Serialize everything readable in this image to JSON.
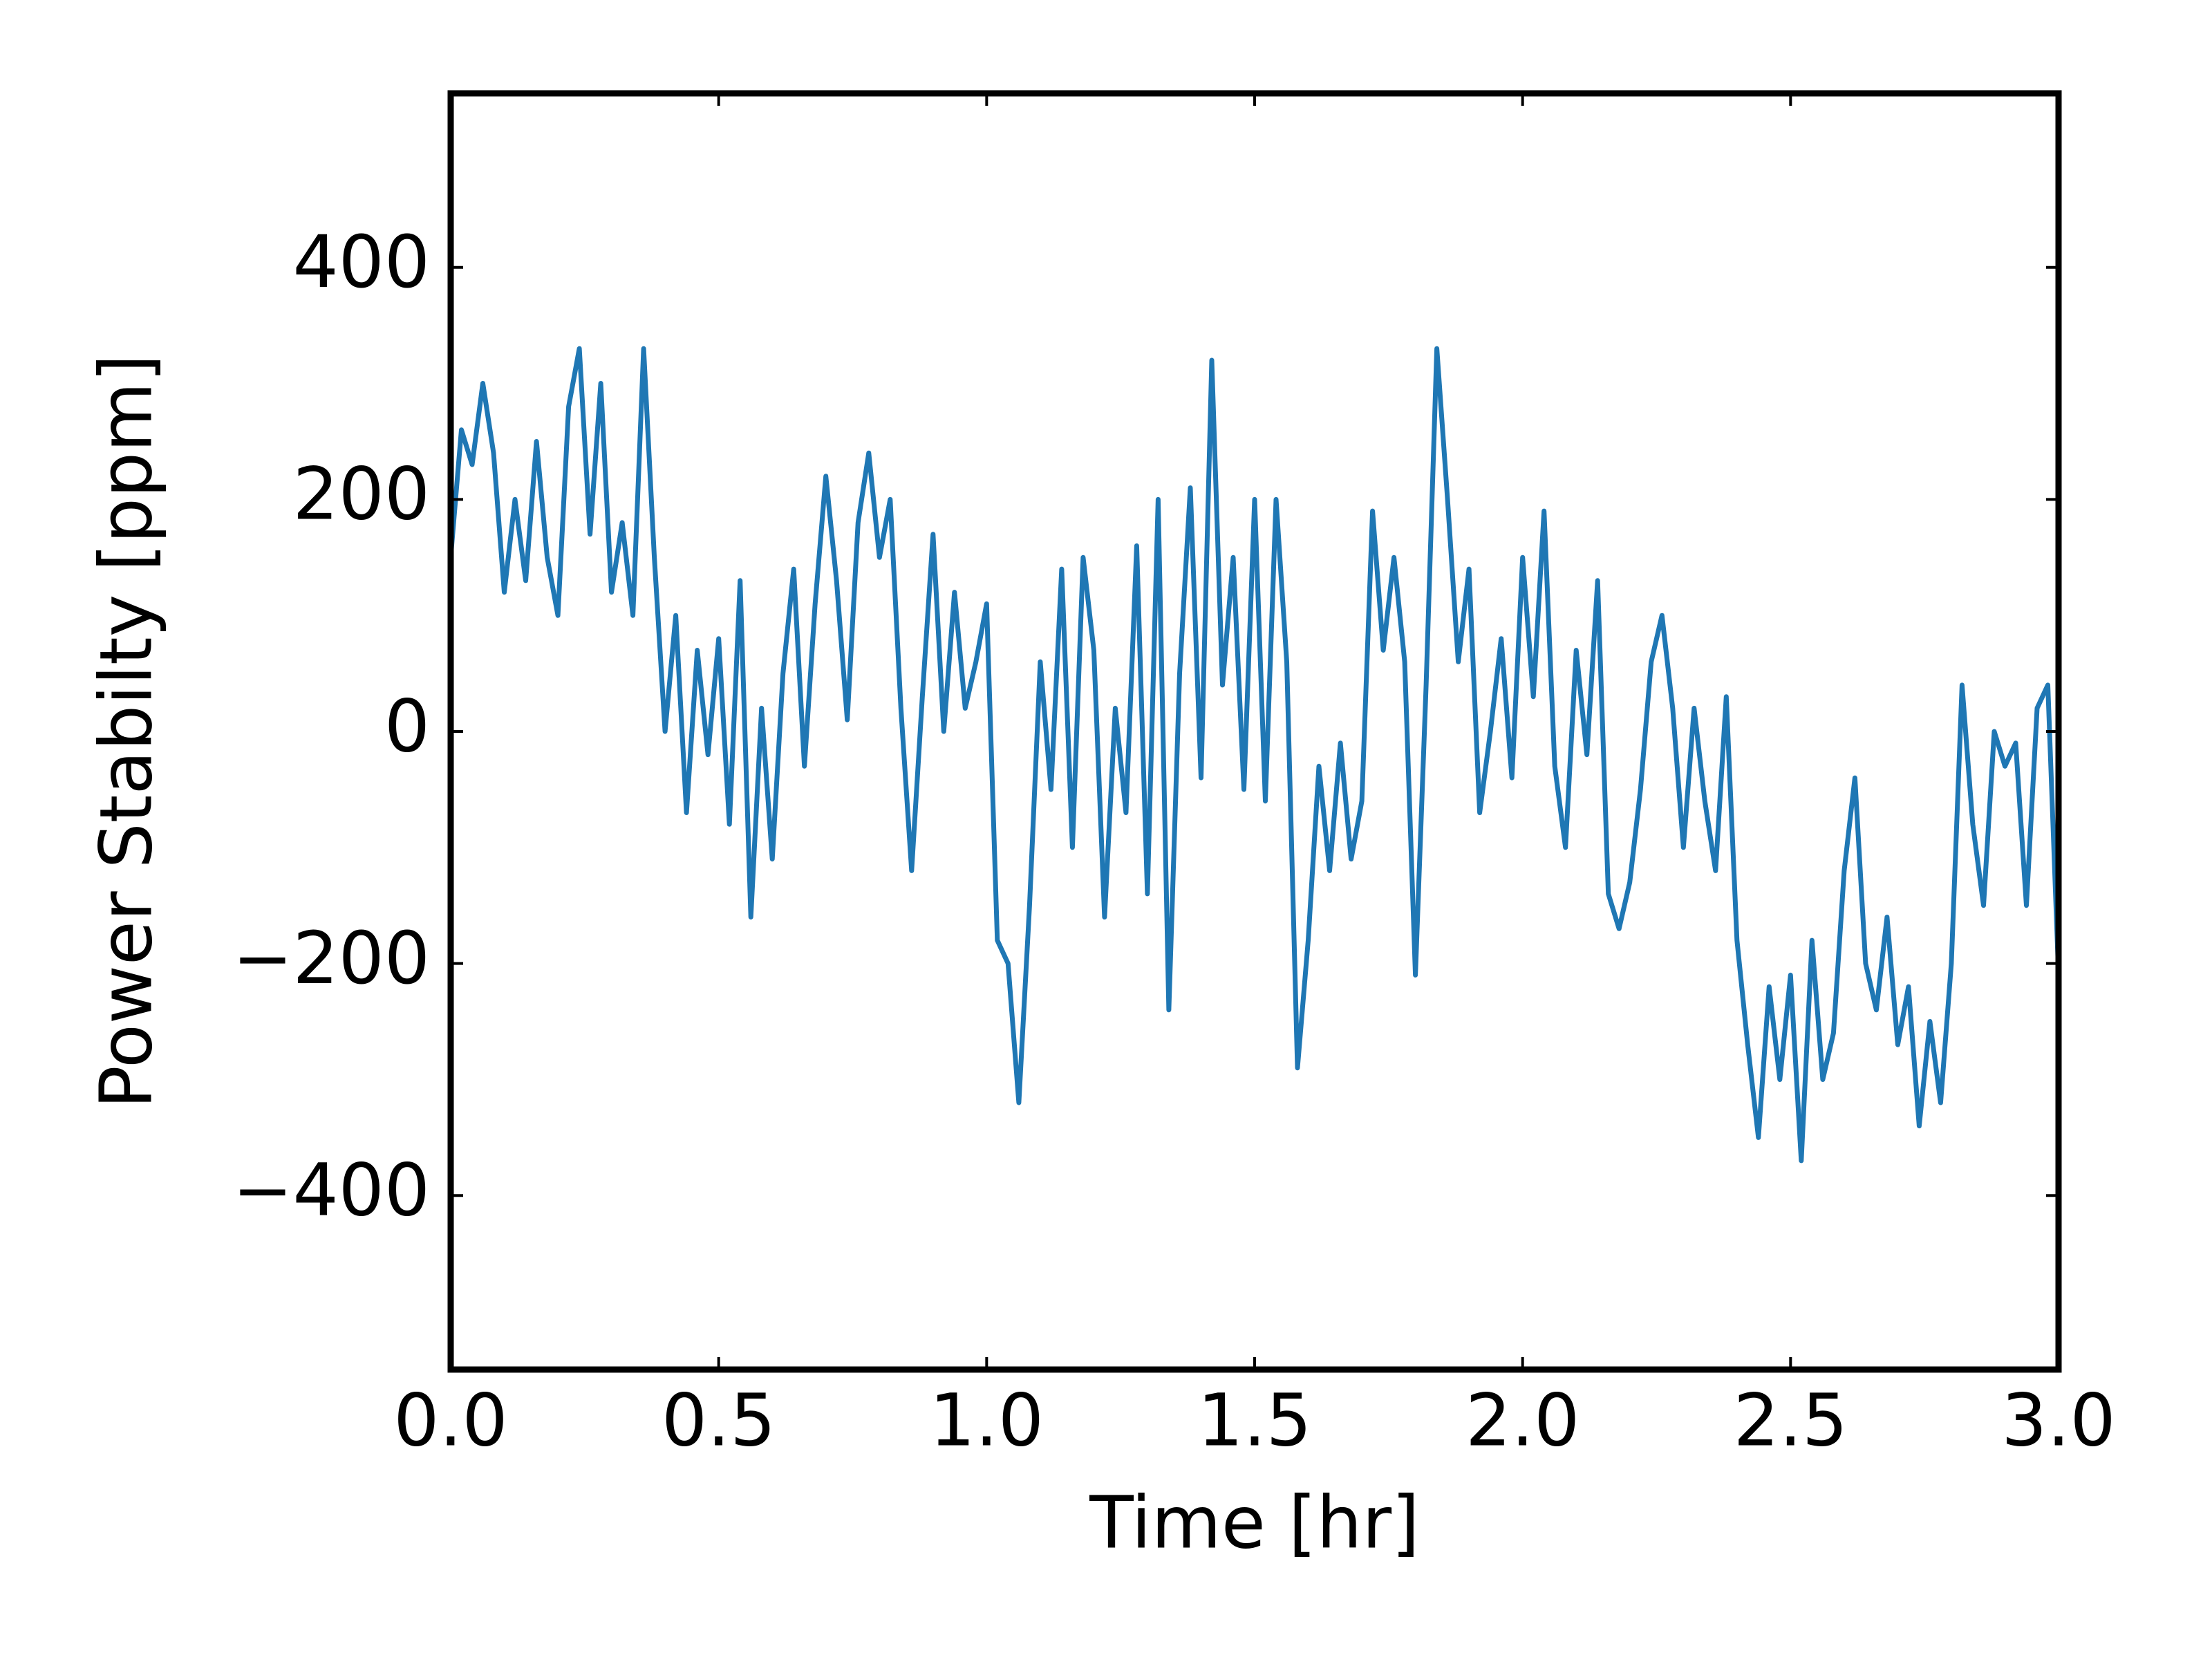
{
  "chart_data": {
    "type": "line",
    "xlabel": "Time [hr]",
    "ylabel": "Power Stabilty [ppm]",
    "color": "#1f77b4",
    "xlim": [
      0,
      3
    ],
    "ylim": [
      -550,
      550
    ],
    "xticks": [
      {
        "value": 0,
        "label": "0.0"
      },
      0.5,
      {
        "value": 1,
        "label": "1.0"
      },
      1.5,
      {
        "value": 2,
        "label": "2.0"
      },
      2.5,
      {
        "value": 3,
        "label": "3.0"
      }
    ],
    "yticks": [
      {
        "value": -400,
        "label": "−400"
      },
      {
        "value": -200,
        "label": "−200"
      },
      0,
      200,
      400
    ],
    "x": [
      0,
      0.02,
      0.04,
      0.06,
      0.08,
      0.1,
      0.12,
      0.14,
      0.16,
      0.18,
      0.2,
      0.22,
      0.24,
      0.26,
      0.28,
      0.3,
      0.32,
      0.34,
      0.36,
      0.38,
      0.4,
      0.42,
      0.44,
      0.46,
      0.48,
      0.5,
      0.52,
      0.54,
      0.56,
      0.58,
      0.6,
      0.62,
      0.64,
      0.66,
      0.68,
      0.7,
      0.72,
      0.74,
      0.76,
      0.78,
      0.8,
      0.82,
      0.84,
      0.86,
      0.88,
      0.9,
      0.92,
      0.94,
      0.96,
      0.98,
      1,
      1.02,
      1.04,
      1.06,
      1.08,
      1.1,
      1.12,
      1.14,
      1.16,
      1.18,
      1.2,
      1.22,
      1.24,
      1.26,
      1.28,
      1.3,
      1.32,
      1.34,
      1.36,
      1.38,
      1.4,
      1.42,
      1.44,
      1.46,
      1.48,
      1.5,
      1.52,
      1.54,
      1.56,
      1.58,
      1.6,
      1.62,
      1.64,
      1.66,
      1.68,
      1.7,
      1.72,
      1.74,
      1.76,
      1.78,
      1.8,
      1.82,
      1.84,
      1.86,
      1.88,
      1.9,
      1.92,
      1.94,
      1.96,
      1.98,
      2,
      2.02,
      2.04,
      2.06,
      2.08,
      2.1,
      2.12,
      2.14,
      2.16,
      2.18,
      2.2,
      2.22,
      2.24,
      2.26,
      2.28,
      2.3,
      2.32,
      2.34,
      2.36,
      2.38,
      2.4,
      2.42,
      2.44,
      2.46,
      2.48,
      2.5,
      2.52,
      2.54,
      2.56,
      2.58,
      2.6,
      2.62,
      2.64,
      2.66,
      2.68,
      2.7,
      2.72,
      2.74,
      2.76,
      2.78,
      2.8,
      2.82,
      2.84,
      2.86,
      2.88,
      2.9,
      2.92,
      2.94,
      2.96,
      2.98,
      3
    ],
    "values": [
      150,
      260,
      230,
      300,
      240,
      120,
      200,
      130,
      250,
      150,
      100,
      280,
      330,
      170,
      300,
      120,
      180,
      100,
      330,
      150,
      0,
      100,
      -70,
      70,
      -20,
      80,
      -80,
      130,
      -160,
      20,
      -110,
      50,
      140,
      -30,
      110,
      220,
      130,
      10,
      180,
      240,
      150,
      200,
      20,
      -120,
      30,
      170,
      0,
      120,
      20,
      60,
      110,
      -180,
      -200,
      -320,
      -150,
      60,
      -50,
      140,
      -100,
      150,
      70,
      -160,
      20,
      -70,
      160,
      -140,
      200,
      -240,
      50,
      210,
      -40,
      320,
      40,
      150,
      -50,
      200,
      -60,
      200,
      60,
      -290,
      -180,
      -30,
      -120,
      -10,
      -110,
      -60,
      190,
      70,
      150,
      60,
      -210,
      40,
      330,
      200,
      60,
      140,
      -70,
      0,
      80,
      -40,
      150,
      30,
      190,
      -30,
      -100,
      70,
      -20,
      130,
      -140,
      -170,
      -130,
      -50,
      60,
      100,
      20,
      -100,
      20,
      -60,
      -120,
      30,
      -180,
      -270,
      -350,
      -220,
      -300,
      -210,
      -370,
      -180,
      -300,
      -260,
      -120,
      -40,
      -200,
      -240,
      -160,
      -270,
      -220,
      -340,
      -250,
      -320,
      -200,
      40,
      -80,
      -150,
      0,
      -30,
      -10,
      -150,
      20,
      40,
      -210
    ]
  }
}
